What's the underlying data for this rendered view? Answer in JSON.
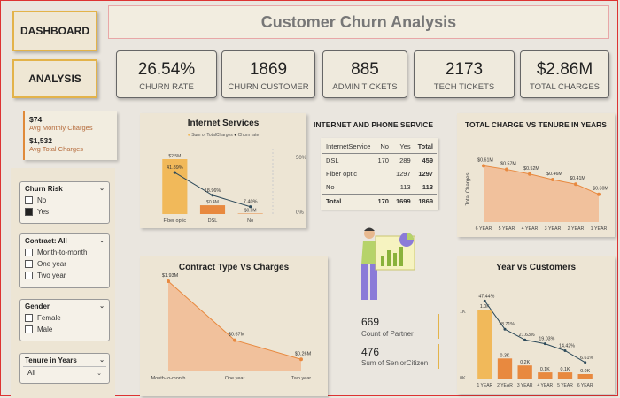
{
  "nav": {
    "dashboard": "DASHBOARD",
    "analysis": "ANALYSIS"
  },
  "title": "Customer Churn Analysis",
  "kpis": [
    {
      "value": "26.54%",
      "label": "CHURN RATE"
    },
    {
      "value": "1869",
      "label": "CHURN CUSTOMER"
    },
    {
      "value": "885",
      "label": "ADMIN TICKETS"
    },
    {
      "value": "2173",
      "label": "TECH TICKETS"
    },
    {
      "value": "$2.86M",
      "label": "TOTAL CHARGES"
    }
  ],
  "averages": {
    "monthly_value": "$74",
    "monthly_label": "Avg Monthly Charges",
    "total_value": "$1,532",
    "total_label": "Avg Total Charges"
  },
  "slicers": {
    "churn": {
      "title": "Churn Risk",
      "options": [
        "No",
        "Yes"
      ],
      "selected": "Yes"
    },
    "contract": {
      "title": "Contract: All",
      "options": [
        "Month-to-month",
        "One year",
        "Two year"
      ]
    },
    "gender": {
      "title": "Gender",
      "options": [
        "Female",
        "Male"
      ]
    },
    "tenure": {
      "title": "Tenure in Years",
      "value": "All"
    }
  },
  "ips_table": {
    "title": "INTERNET AND PHONE SERVICE",
    "headers": [
      "InternetService",
      "No",
      "Yes",
      "Total"
    ],
    "rows": [
      [
        "DSL",
        "170",
        "289",
        "459"
      ],
      [
        "Fiber optic",
        "",
        "1297",
        "1297"
      ],
      [
        "No",
        "",
        "113",
        "113"
      ],
      [
        "Total",
        "170",
        "1699",
        "1869"
      ]
    ]
  },
  "partner": {
    "value": "669",
    "label": "Count of Partner"
  },
  "senior": {
    "value": "476",
    "label": "Sum of SeniorCitizen"
  },
  "colors": {
    "accent": "#e3b34a",
    "orange": "#e8893f",
    "peach": "#f2b48a",
    "bar": "#f1b95a"
  },
  "chart_data": [
    {
      "id": "internet",
      "type": "bar",
      "title": "Internet Services",
      "legend": [
        "Sum of TotalCharges",
        "Churn rate"
      ],
      "categories": [
        "Fiber optic",
        "DSL",
        "No"
      ],
      "values": [
        2.5,
        0.4,
        0.0
      ],
      "value_labels": [
        "$2.5M",
        "$0.4M",
        "$0.0M"
      ],
      "churn_rate": [
        41.89,
        18.96,
        7.4
      ],
      "churn_labels": [
        "41.89%",
        "18.96%",
        "7.40%"
      ],
      "y2_ticks": [
        "50%",
        "0%"
      ]
    },
    {
      "id": "tenure",
      "type": "area",
      "title": "TOTAL CHARGE VS TENURE IN YEARS",
      "ylabel": "Total Charges",
      "categories": [
        "6 YEAR",
        "5 YEAR",
        "4 YEAR",
        "3 YEAR",
        "2 YEAR",
        "1 YEAR"
      ],
      "values": [
        0.61,
        0.57,
        0.52,
        0.46,
        0.41,
        0.3
      ],
      "value_labels": [
        "$0.61M",
        "$0.57M",
        "$0.52M",
        "$0.46M",
        "$0.41M",
        "$0.30M"
      ]
    },
    {
      "id": "contract",
      "type": "area",
      "title": "Contract Type Vs Charges",
      "categories": [
        "Month-to-month",
        "One year",
        "Two year"
      ],
      "values": [
        1.93,
        0.67,
        0.26
      ],
      "value_labels": [
        "$1.93M",
        "$0.67M",
        "$0.26M"
      ]
    },
    {
      "id": "year",
      "type": "bar",
      "title": "Year vs Customers",
      "categories": [
        "1 YEAR",
        "2 YEAR",
        "3 YEAR",
        "4 YEAR",
        "5 YEAR",
        "6 YEAR"
      ],
      "values": [
        1.0,
        0.3,
        0.2,
        0.1,
        0.1,
        0.0
      ],
      "value_labels": [
        "1.0K",
        "0.3K",
        "0.2K",
        "0.1K",
        "0.1K",
        "0.0K"
      ],
      "churn_rate": [
        47.44,
        28.71,
        21.63,
        19.03,
        14.42,
        6.61
      ],
      "churn_labels": [
        "47.44%",
        "28.71%",
        "21.63%",
        "19.03%",
        "14.42%",
        "6.61%"
      ],
      "y_ticks": [
        "1K",
        "0K"
      ]
    }
  ]
}
